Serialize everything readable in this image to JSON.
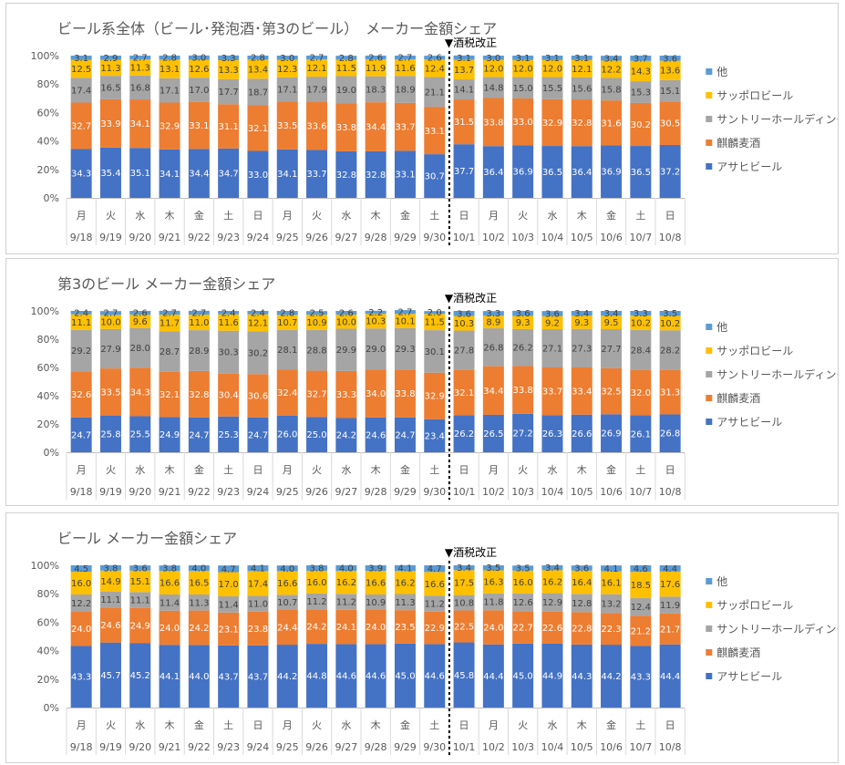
{
  "colors": {
    "asahi": "#4472c4",
    "kirin": "#ed7d31",
    "suntory": "#a5a5a5",
    "sapporo": "#ffc000",
    "other": "#5b9bd5"
  },
  "annotation": "▼酒税改正",
  "chart_data": [
    {
      "type": "bar",
      "stacked": true,
      "title": "ビール系全体（ビール･発泡酒･第3のビール）　メーカー金額シェア",
      "weekdays": [
        "月",
        "火",
        "水",
        "木",
        "金",
        "土",
        "日",
        "月",
        "火",
        "水",
        "木",
        "金",
        "土",
        "日",
        "月",
        "火",
        "水",
        "木",
        "金",
        "土",
        "日"
      ],
      "categories": [
        "9/18",
        "9/19",
        "9/20",
        "9/21",
        "9/22",
        "9/23",
        "9/24",
        "9/25",
        "9/26",
        "9/27",
        "9/28",
        "9/29",
        "9/30",
        "10/1",
        "10/2",
        "10/3",
        "10/4",
        "10/5",
        "10/6",
        "10/7",
        "10/8"
      ],
      "yticks": [
        "0%",
        "20%",
        "40%",
        "60%",
        "80%",
        "100%"
      ],
      "ylim": [
        0,
        100
      ],
      "legend_position": "right",
      "series": [
        {
          "name": "アサヒビール",
          "values": [
            34.3,
            35.4,
            35.1,
            34.1,
            34.4,
            34.7,
            33.0,
            34.1,
            33.7,
            32.8,
            32.8,
            33.1,
            30.7,
            37.7,
            36.4,
            36.9,
            36.5,
            36.4,
            36.9,
            36.5,
            37.2
          ]
        },
        {
          "name": "麒麟麦酒",
          "values": [
            32.7,
            33.9,
            34.1,
            32.9,
            33.1,
            31.1,
            32.1,
            33.5,
            33.6,
            33.8,
            34.4,
            33.7,
            33.1,
            31.5,
            33.8,
            33.0,
            32.9,
            32.8,
            31.6,
            30.2,
            30.5
          ]
        },
        {
          "name": "サントリーホールディングス",
          "values": [
            17.4,
            16.5,
            16.8,
            17.1,
            17.0,
            17.7,
            18.7,
            17.1,
            17.9,
            19.0,
            18.3,
            18.9,
            21.1,
            14.1,
            14.8,
            15.0,
            15.5,
            15.6,
            15.8,
            15.3,
            15.1
          ]
        },
        {
          "name": "サッポロビール",
          "values": [
            12.5,
            11.3,
            11.3,
            13.1,
            12.6,
            13.3,
            13.4,
            12.3,
            12.1,
            11.5,
            11.9,
            11.6,
            12.4,
            13.7,
            12.0,
            12.0,
            12.0,
            12.1,
            12.2,
            14.3,
            13.6
          ]
        },
        {
          "name": "他",
          "values": [
            3.1,
            2.9,
            2.7,
            2.8,
            3.0,
            3.3,
            2.8,
            3.0,
            2.7,
            2.8,
            2.6,
            2.7,
            2.6,
            3.1,
            3.0,
            3.1,
            3.1,
            3.1,
            3.4,
            3.7,
            3.6
          ]
        }
      ]
    },
    {
      "type": "bar",
      "stacked": true,
      "title": "第3のビール メーカー金額シェア",
      "weekdays": [
        "月",
        "火",
        "水",
        "木",
        "金",
        "土",
        "日",
        "月",
        "火",
        "水",
        "木",
        "金",
        "土",
        "日",
        "月",
        "火",
        "水",
        "木",
        "金",
        "土",
        "日"
      ],
      "categories": [
        "9/18",
        "9/19",
        "9/20",
        "9/21",
        "9/22",
        "9/23",
        "9/24",
        "9/25",
        "9/26",
        "9/27",
        "9/28",
        "9/29",
        "9/30",
        "10/1",
        "10/2",
        "10/3",
        "10/4",
        "10/5",
        "10/6",
        "10/7",
        "10/8"
      ],
      "yticks": [
        "0%",
        "20%",
        "40%",
        "60%",
        "80%",
        "100%"
      ],
      "ylim": [
        0,
        100
      ],
      "legend_position": "right",
      "series": [
        {
          "name": "アサヒビール",
          "values": [
            24.7,
            25.8,
            25.5,
            24.9,
            24.7,
            25.3,
            24.7,
            26.0,
            25.0,
            24.2,
            24.6,
            24.7,
            23.4,
            26.2,
            26.5,
            27.2,
            26.3,
            26.6,
            26.9,
            26.1,
            26.8
          ]
        },
        {
          "name": "麒麟麦酒",
          "values": [
            32.6,
            33.5,
            34.3,
            32.1,
            32.8,
            30.4,
            30.6,
            32.4,
            32.7,
            33.3,
            34.0,
            33.8,
            32.9,
            32.1,
            34.4,
            33.8,
            33.7,
            33.4,
            32.5,
            32.0,
            31.3
          ]
        },
        {
          "name": "サントリーホールディングス",
          "values": [
            29.2,
            27.9,
            28.0,
            28.7,
            28.9,
            30.3,
            30.2,
            28.1,
            28.8,
            29.9,
            29.0,
            29.3,
            30.1,
            27.8,
            26.8,
            26.2,
            27.1,
            27.3,
            27.7,
            28.4,
            28.2
          ]
        },
        {
          "name": "サッポロビール",
          "values": [
            11.1,
            10.0,
            9.6,
            11.7,
            11.0,
            11.6,
            12.1,
            10.7,
            10.9,
            10.0,
            10.3,
            10.1,
            11.5,
            10.3,
            8.9,
            9.3,
            9.2,
            9.3,
            9.5,
            10.2,
            10.2
          ]
        },
        {
          "name": "他",
          "values": [
            2.4,
            2.7,
            2.6,
            2.7,
            2.7,
            2.4,
            2.4,
            2.8,
            2.5,
            2.6,
            2.2,
            2.7,
            2.0,
            3.6,
            3.3,
            3.6,
            3.6,
            3.4,
            3.4,
            3.3,
            3.5
          ]
        }
      ]
    },
    {
      "type": "bar",
      "stacked": true,
      "title": "ビール メーカー金額シェア",
      "weekdays": [
        "月",
        "火",
        "水",
        "木",
        "金",
        "土",
        "日",
        "月",
        "火",
        "水",
        "木",
        "金",
        "土",
        "日",
        "月",
        "火",
        "水",
        "木",
        "金",
        "土",
        "日"
      ],
      "categories": [
        "9/18",
        "9/19",
        "9/20",
        "9/21",
        "9/22",
        "9/23",
        "9/24",
        "9/25",
        "9/26",
        "9/27",
        "9/28",
        "9/29",
        "9/30",
        "10/1",
        "10/2",
        "10/3",
        "10/4",
        "10/5",
        "10/6",
        "10/7",
        "10/8"
      ],
      "yticks": [
        "0%",
        "20%",
        "40%",
        "60%",
        "80%",
        "100%"
      ],
      "ylim": [
        0,
        100
      ],
      "legend_position": "right",
      "series": [
        {
          "name": "アサヒビール",
          "values": [
            43.3,
            45.7,
            45.2,
            44.1,
            44.0,
            43.7,
            43.7,
            44.2,
            44.8,
            44.6,
            44.6,
            45.0,
            44.6,
            45.8,
            44.4,
            45.0,
            44.9,
            44.3,
            44.2,
            43.3,
            44.4
          ]
        },
        {
          "name": "麒麟麦酒",
          "values": [
            24.0,
            24.6,
            24.9,
            24.0,
            24.2,
            23.1,
            23.8,
            24.4,
            24.2,
            24.1,
            24.0,
            23.5,
            22.9,
            22.5,
            24.0,
            22.7,
            22.6,
            22.8,
            22.3,
            21.2,
            21.7
          ]
        },
        {
          "name": "サントリーホールディングス",
          "values": [
            12.2,
            11.1,
            11.1,
            11.4,
            11.3,
            11.4,
            11.0,
            10.7,
            11.2,
            11.2,
            10.9,
            11.3,
            11.2,
            10.8,
            11.8,
            12.6,
            12.9,
            12.8,
            13.2,
            12.4,
            11.9
          ]
        },
        {
          "name": "サッポロビール",
          "values": [
            16.0,
            14.9,
            15.1,
            16.6,
            16.5,
            17.0,
            17.4,
            16.6,
            16.0,
            16.2,
            16.6,
            16.2,
            16.6,
            17.5,
            16.3,
            16.0,
            16.2,
            16.4,
            16.1,
            18.5,
            17.6
          ]
        },
        {
          "name": "他",
          "values": [
            4.5,
            3.8,
            3.6,
            3.8,
            4.0,
            4.7,
            4.1,
            4.0,
            3.8,
            4.0,
            3.9,
            4.1,
            4.7,
            3.4,
            3.5,
            3.5,
            3.4,
            3.6,
            4.1,
            4.6,
            4.4
          ]
        }
      ]
    }
  ]
}
